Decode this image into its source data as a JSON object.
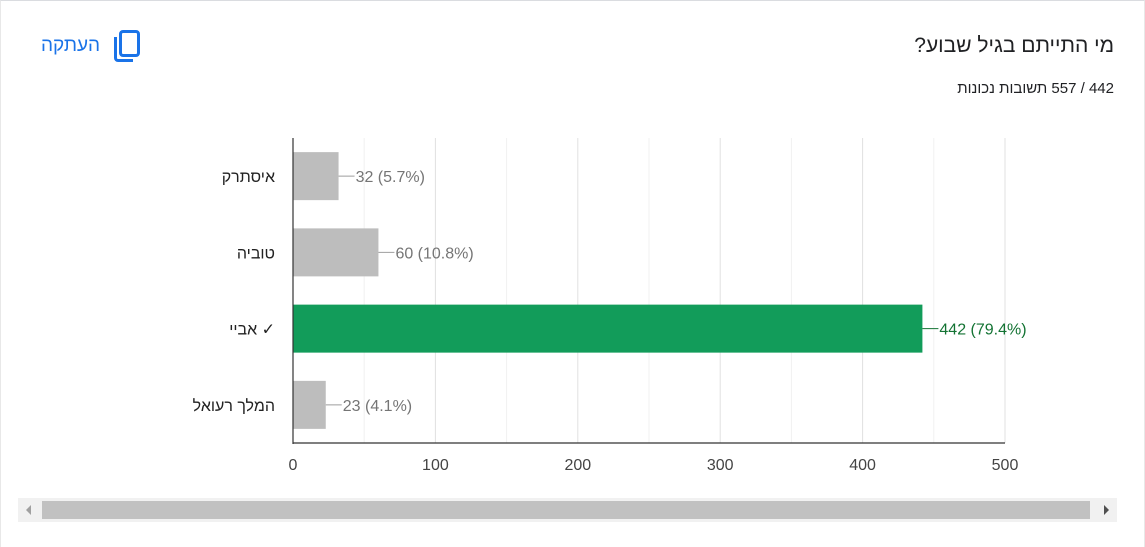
{
  "question": {
    "title": "מי התייתם בגיל שבוע?",
    "response_count": "442 / 557 תשובות נכונות"
  },
  "toolbar": {
    "copy_label": "העתקה",
    "copy_icon": "copy-icon"
  },
  "colors": {
    "correct": "#129c5a",
    "incorrect": "#bdbdbd",
    "correct_label": "#137333",
    "incorrect_label": "#757575",
    "accent": "#1a73e8"
  },
  "chart_data": {
    "type": "bar",
    "orientation": "horizontal",
    "categories": [
      "איסתרק",
      "טוביה",
      "אביי ✓",
      "המלך רעואל"
    ],
    "values": [
      32,
      60,
      442,
      23
    ],
    "value_labels": [
      "32 (5.7%)",
      "60 (10.8%)",
      "442 (79.4%)",
      "23 (4.1%)"
    ],
    "correct_index": 2,
    "xlim": [
      0,
      500
    ],
    "xticks": [
      0,
      100,
      200,
      300,
      400,
      500
    ],
    "grid": true,
    "title": "",
    "xlabel": "",
    "ylabel": ""
  }
}
